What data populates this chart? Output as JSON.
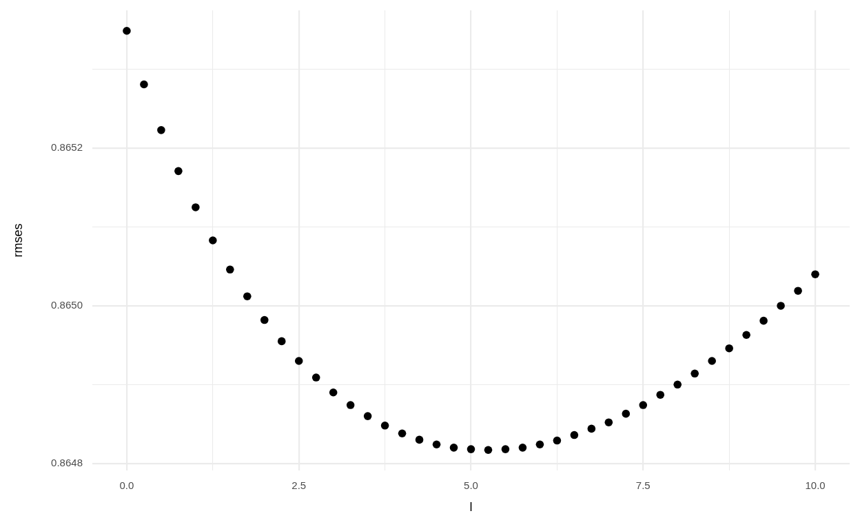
{
  "chart_data": {
    "type": "scatter",
    "xlabel": "l",
    "ylabel": "rmses",
    "x": [
      0,
      0.25,
      0.5,
      0.75,
      1,
      1.25,
      1.5,
      1.75,
      2,
      2.25,
      2.5,
      2.75,
      3,
      3.25,
      3.5,
      3.75,
      4,
      4.25,
      4.5,
      4.75,
      5,
      5.25,
      5.5,
      5.75,
      6,
      6.25,
      6.5,
      6.75,
      7,
      7.25,
      7.5,
      7.75,
      8,
      8.25,
      8.5,
      8.75,
      9,
      9.25,
      9.5,
      9.75,
      10
    ],
    "values": [
      0.865349,
      0.865281,
      0.865223,
      0.865171,
      0.865125,
      0.865083,
      0.865046,
      0.865012,
      0.864982,
      0.864955,
      0.86493,
      0.864909,
      0.86489,
      0.864874,
      0.86486,
      0.864848,
      0.864838,
      0.86483,
      0.864824,
      0.86482,
      0.864818,
      0.864817,
      0.864818,
      0.86482,
      0.864824,
      0.864829,
      0.864836,
      0.864844,
      0.864852,
      0.864863,
      0.864874,
      0.864887,
      0.8649,
      0.864914,
      0.86493,
      0.864946,
      0.864963,
      0.864981,
      0.865,
      0.865019,
      0.86504
    ],
    "color": "#000000",
    "marker": "circle",
    "xlim": [
      -0.5,
      10.5
    ],
    "ylim": [
      0.864791,
      0.865375
    ],
    "xticks": [
      {
        "value": 0,
        "label": "0.0"
      },
      {
        "value": 1.25,
        "label": null
      },
      2.5,
      {
        "value": 3.75,
        "label": null
      },
      {
        "value": 5,
        "label": "5.0"
      },
      {
        "value": 6.25,
        "label": null
      },
      7.5,
      {
        "value": 8.75,
        "label": null
      },
      {
        "value": 10,
        "label": "10.0"
      }
    ],
    "yticks": [
      0.8648,
      {
        "value": 0.8649,
        "label": null
      },
      {
        "value": 0.865,
        "label": "0.8650"
      },
      {
        "value": 0.8651,
        "label": null
      },
      0.8652,
      {
        "value": 0.8653,
        "label": null
      }
    ],
    "grid": true
  }
}
